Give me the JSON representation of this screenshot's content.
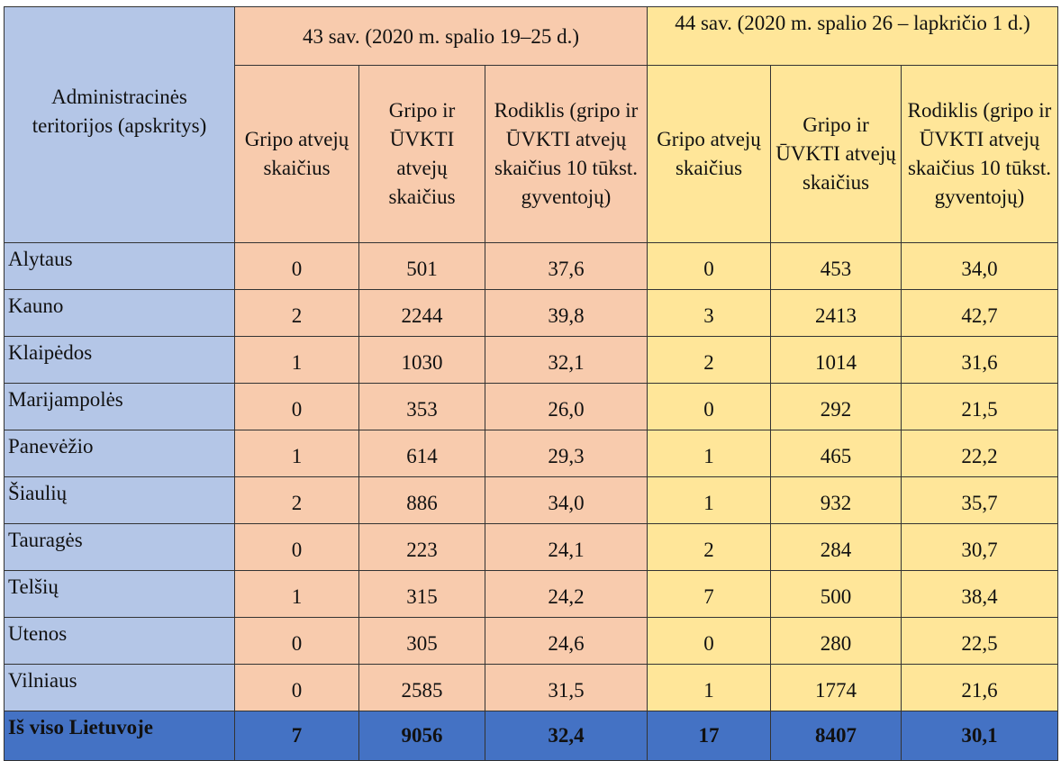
{
  "header": {
    "territory": "Administracinės teritorijos (apskritys)",
    "week43": "43 sav. (2020 m. spalio 19–25 d.)",
    "week44": "44 sav. (2020 m. spalio 26 – lapkričio 1 d.)",
    "col_flu": "Gripo atvejų skaičius",
    "col_flu_ari": "Gripo ir ŪVKTI atvejų skaičius",
    "col_rate": "Rodiklis (gripo ir ŪVKTI atvejų skaičius 10 tūkst. gyventojų)"
  },
  "rows": [
    {
      "name": "Alytaus",
      "w43": [
        "0",
        "501",
        "37,6"
      ],
      "w44": [
        "0",
        "453",
        "34,0"
      ]
    },
    {
      "name": "Kauno",
      "w43": [
        "2",
        "2244",
        "39,8"
      ],
      "w44": [
        "3",
        "2413",
        "42,7"
      ]
    },
    {
      "name": "Klaipėdos",
      "w43": [
        "1",
        "1030",
        "32,1"
      ],
      "w44": [
        "2",
        "1014",
        "31,6"
      ]
    },
    {
      "name": "Marijampolės",
      "w43": [
        "0",
        "353",
        "26,0"
      ],
      "w44": [
        "0",
        "292",
        "21,5"
      ]
    },
    {
      "name": "Panevėžio",
      "w43": [
        "1",
        "614",
        "29,3"
      ],
      "w44": [
        "1",
        "465",
        "22,2"
      ]
    },
    {
      "name": "Šiaulių",
      "w43": [
        "2",
        "886",
        "34,0"
      ],
      "w44": [
        "1",
        "932",
        "35,7"
      ]
    },
    {
      "name": "Tauragės",
      "w43": [
        "0",
        "223",
        "24,1"
      ],
      "w44": [
        "2",
        "284",
        "30,7"
      ]
    },
    {
      "name": "Telšių",
      "w43": [
        "1",
        "315",
        "24,2"
      ],
      "w44": [
        "7",
        "500",
        "38,4"
      ]
    },
    {
      "name": "Utenos",
      "w43": [
        "0",
        "305",
        "24,6"
      ],
      "w44": [
        "0",
        "280",
        "22,5"
      ]
    },
    {
      "name": "Vilniaus",
      "w43": [
        "0",
        "2585",
        "31,5"
      ],
      "w44": [
        "1",
        "1774",
        "21,6"
      ]
    }
  ],
  "total": {
    "name": "Iš viso Lietuvoje",
    "w43": [
      "7",
      "9056",
      "32,4"
    ],
    "w44": [
      "17",
      "8407",
      "30,1"
    ]
  },
  "colors": {
    "territory": "#b4c6e7",
    "week43": "#f8cbad",
    "week44": "#ffe699",
    "total": "#4472c4"
  }
}
